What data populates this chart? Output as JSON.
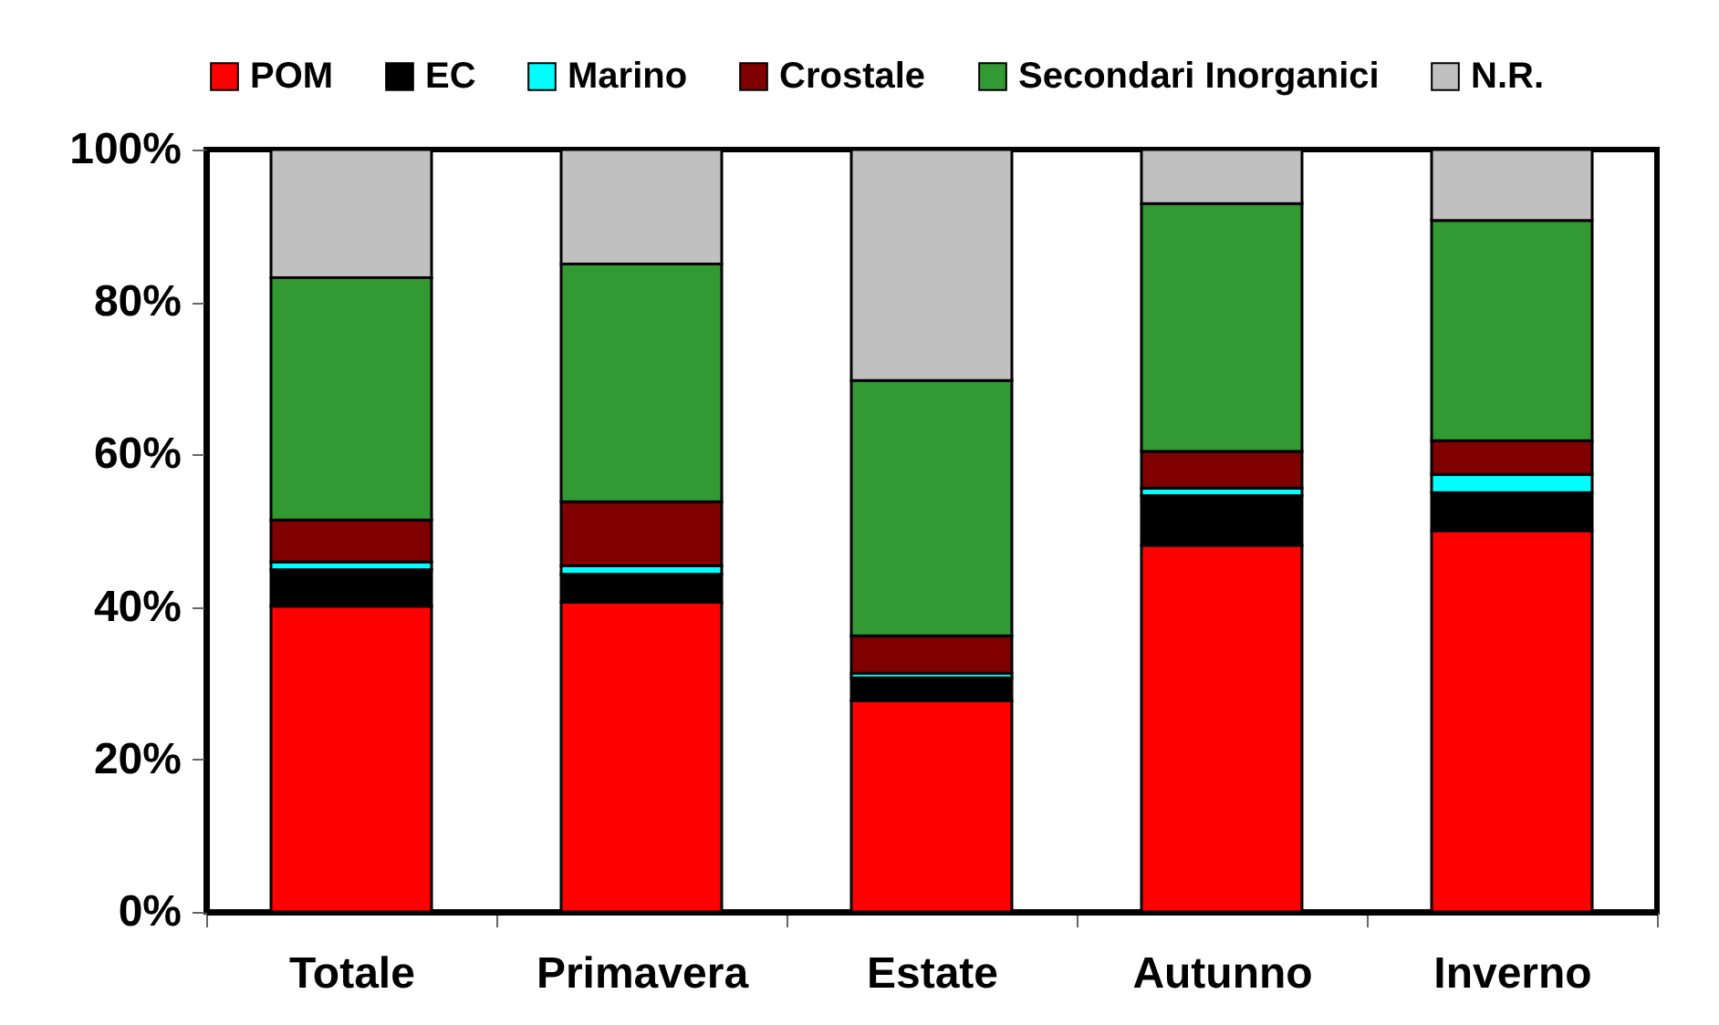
{
  "chart_data": {
    "type": "bar",
    "stacked": true,
    "legend": "top",
    "grid": false,
    "categories": [
      "Totale",
      "Primavera",
      "Estate",
      "Autunno",
      "Inverno"
    ],
    "ylim": [
      0,
      100
    ],
    "yticks": [
      {
        "value": 0,
        "label": "0%"
      },
      {
        "value": 20,
        "label": "20%"
      },
      {
        "value": 40,
        "label": "40%"
      },
      {
        "value": 60,
        "label": "60%"
      },
      {
        "value": 80,
        "label": "80%"
      },
      {
        "value": 100,
        "label": "100%"
      }
    ],
    "series": [
      {
        "name": "POM",
        "color": "#ff0000",
        "values": [
          40.1,
          40.6,
          27.7,
          48.1,
          50.0
        ]
      },
      {
        "name": "EC",
        "color": "#000000",
        "values": [
          4.8,
          3.7,
          3.0,
          6.5,
          5.0
        ]
      },
      {
        "name": "Marino",
        "color": "#00ffff",
        "values": [
          1.0,
          1.1,
          0.6,
          1.0,
          2.4
        ]
      },
      {
        "name": "Crostale",
        "color": "#800000",
        "values": [
          5.5,
          8.4,
          4.9,
          4.8,
          4.4
        ]
      },
      {
        "name": "Secondari Inorganici",
        "color": "#339933",
        "values": [
          31.8,
          31.2,
          33.5,
          32.5,
          28.9
        ]
      },
      {
        "name": "N.R.",
        "color": "#c0c0c0",
        "values": [
          16.8,
          15.0,
          30.3,
          7.1,
          9.3
        ]
      }
    ]
  }
}
